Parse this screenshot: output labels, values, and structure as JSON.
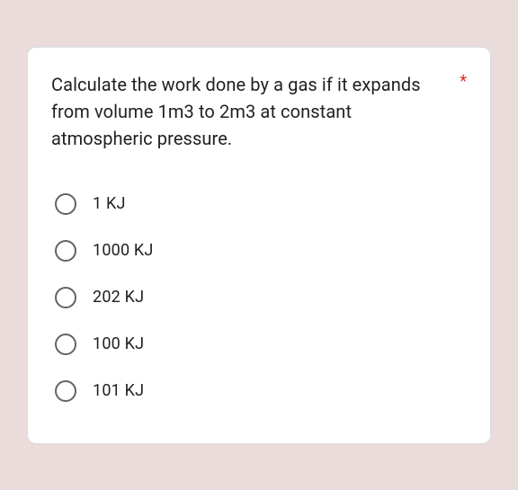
{
  "card": {
    "background_color": "#ffffff",
    "border_color": "#dadce0",
    "border_radius": 10
  },
  "page": {
    "background_color": "#e9dcdb"
  },
  "question": {
    "text": "Calculate the work done by a gas if it expands from volume 1m3 to 2m3 at constant atmospheric pressure.",
    "required_marker": "*",
    "required_color": "#d93025",
    "text_color": "#202124",
    "font_size": 20
  },
  "radio_style": {
    "border_color": "#5f6368",
    "size": 24,
    "border_width": 2.5
  },
  "options": [
    {
      "label": "1 KJ"
    },
    {
      "label": "1000 KJ"
    },
    {
      "label": "202 KJ"
    },
    {
      "label": "100 KJ"
    },
    {
      "label": "101 KJ"
    }
  ]
}
